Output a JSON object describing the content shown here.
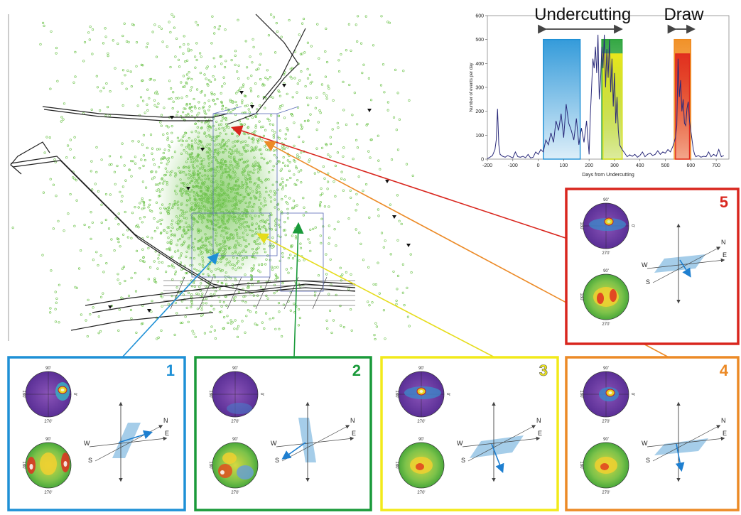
{
  "chart_data": {
    "type": "line",
    "xlabel": "Days from Undercutting",
    "ylabel": "Number of events per day",
    "xlim": [
      -200,
      750
    ],
    "ylim": [
      0,
      600
    ],
    "xticks": [
      -200,
      -100,
      0,
      100,
      200,
      300,
      400,
      500,
      600,
      700
    ],
    "yticks": [
      0,
      100,
      200,
      300,
      400,
      500,
      600
    ],
    "series": [
      {
        "x": [
          -200,
          -190,
          -180,
          -170,
          -165,
          -160,
          -155,
          -150,
          -140,
          -130,
          -120,
          -110,
          -100,
          -90,
          -80,
          -70,
          -60,
          -50,
          -40,
          -30,
          -20,
          -10,
          0,
          10,
          20,
          30,
          40,
          50,
          60,
          70,
          80,
          90,
          100,
          110,
          120,
          130,
          140,
          150,
          160,
          170,
          180,
          190,
          200,
          205,
          210,
          215,
          220,
          225,
          230,
          235,
          240,
          245,
          250,
          255,
          260,
          265,
          270,
          275,
          280,
          285,
          290,
          295,
          300,
          305,
          310,
          315,
          320,
          330,
          340,
          350,
          360,
          370,
          380,
          390,
          400,
          410,
          420,
          430,
          440,
          450,
          460,
          470,
          480,
          490,
          500,
          510,
          520,
          530,
          540,
          545,
          550,
          555,
          560,
          565,
          570,
          575,
          580,
          585,
          590,
          595,
          600,
          605,
          610,
          615,
          620,
          630,
          640,
          650,
          660,
          670,
          680,
          690,
          700,
          710,
          720,
          730
        ],
        "y": [
          2,
          8,
          15,
          40,
          80,
          210,
          60,
          20,
          12,
          8,
          15,
          10,
          5,
          30,
          10,
          8,
          12,
          6,
          20,
          5,
          8,
          30,
          20,
          40,
          30,
          80,
          60,
          110,
          70,
          160,
          120,
          190,
          90,
          230,
          150,
          120,
          80,
          170,
          60,
          130,
          70,
          160,
          20,
          180,
          300,
          420,
          380,
          470,
          360,
          520,
          250,
          330,
          470,
          380,
          520,
          300,
          460,
          340,
          500,
          280,
          420,
          220,
          360,
          150,
          260,
          120,
          60,
          40,
          25,
          10,
          18,
          12,
          20,
          8,
          15,
          30,
          10,
          20,
          25,
          15,
          20,
          35,
          20,
          30,
          25,
          40,
          30,
          55,
          90,
          140,
          420,
          260,
          330,
          200,
          250,
          150,
          140,
          210,
          240,
          160,
          120,
          80,
          40,
          20,
          10,
          15,
          8,
          12,
          10,
          30,
          10,
          20,
          12,
          40,
          10,
          15
        ]
      }
    ],
    "annotations": [
      {
        "label": "Undercutting",
        "x_range": [
          20,
          330
        ]
      },
      {
        "label": "Draw",
        "x_range": [
          530,
          615
        ]
      }
    ],
    "highlights": [
      {
        "id": "1",
        "color": "#1e90d6",
        "x_range": [
          20,
          165
        ],
        "y_top": 500
      },
      {
        "id": "2",
        "color": "#2aa33a",
        "x_range": [
          250,
          330
        ],
        "y_top": 500
      },
      {
        "id": "3",
        "color": "#e6e61a",
        "x_range": [
          255,
          330
        ],
        "y_top": 440
      },
      {
        "id": "4",
        "color": "#f08c1e",
        "x_range": [
          535,
          600
        ],
        "y_top": 500
      },
      {
        "id": "5",
        "color": "#e02a1e",
        "x_range": [
          540,
          595
        ],
        "y_top": 440
      }
    ]
  },
  "panels": [
    {
      "id": "1",
      "number": "1",
      "color": "#1e90d6",
      "stereonet_top": "90'",
      "stereonet_bottom": "270'",
      "stereonet_left": "180'",
      "stereonet_right": "0'",
      "dirs": {
        "n": "N",
        "e": "E",
        "w": "W",
        "s": "S"
      }
    },
    {
      "id": "2",
      "number": "2",
      "color": "#1a9a3a",
      "stereonet_top": "90'",
      "stereonet_bottom": "270'",
      "stereonet_left": "180'",
      "stereonet_right": "0'",
      "dirs": {
        "n": "N",
        "e": "E",
        "w": "W",
        "s": "S"
      }
    },
    {
      "id": "3",
      "number": "3",
      "color": "#f2ea1a",
      "stereonet_top": "90'",
      "stereonet_bottom": "270'",
      "stereonet_left": "180'",
      "stereonet_right": "0'",
      "dirs": {
        "n": "N",
        "e": "E",
        "w": "W",
        "s": "S"
      }
    },
    {
      "id": "4",
      "number": "4",
      "color": "#ec8a26",
      "stereonet_top": "90'",
      "stereonet_bottom": "270'",
      "stereonet_left": "180'",
      "stereonet_right": "0'",
      "dirs": {
        "n": "N",
        "e": "E",
        "w": "W",
        "s": "S"
      }
    },
    {
      "id": "5",
      "number": "5",
      "color": "#d9261e",
      "stereonet_top": "90'",
      "stereonet_bottom": "270'",
      "stereonet_left": "180'",
      "stereonet_right": "0'",
      "dirs": {
        "n": "N",
        "e": "E",
        "w": "W",
        "s": "S"
      }
    }
  ],
  "colors": {
    "cloud": "#6cc24a",
    "mine": "#222222"
  }
}
